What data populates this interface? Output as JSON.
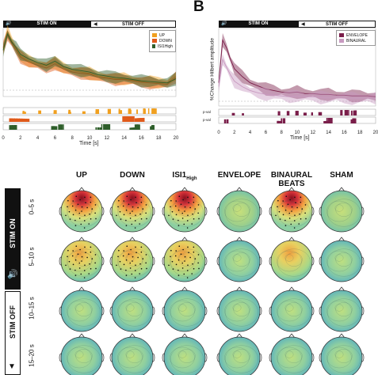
{
  "figure": {
    "panel_b_letter": "B",
    "stim_on_label": "STIM ON",
    "stim_off_label": "STIM OFF",
    "time_axis_label": "Time [s]",
    "panel_b_ylabel": "%Change Hilbert amplitude",
    "p_label_1": "p-val",
    "p_label_2": "p-val",
    "column_headers": [
      "UP",
      "DOWN",
      "ISI1",
      "ENVELOPE",
      "BINAURAL",
      "SHAM"
    ],
    "column_header_sub_isi": "High",
    "column_header_binaural_line2": "BEATS",
    "row_labels": [
      "0–5 s",
      "5–10 s",
      "10–15 s",
      "15–20 s"
    ],
    "side_stim_on": "STIM ON",
    "side_stim_off": "STIM OFF",
    "colors": {
      "up": "#f0a020",
      "down": "#e05a1a",
      "isi1": "#2e5e2a",
      "envelope": "#7a1e4a",
      "binaural": "#c89ac0"
    }
  },
  "chart_data": [
    {
      "type": "line",
      "xlabel": "Time [s]",
      "ylabel": "",
      "xlim": [
        0,
        20
      ],
      "x_ticks": [
        "0",
        "2",
        "4",
        "6",
        "8",
        "10",
        "12",
        "14",
        "16",
        "18",
        "20"
      ],
      "legend": [
        "UP",
        "DOWN",
        "ISI1High"
      ],
      "legend_placement": "top-right",
      "x": [
        0,
        0.5,
        1,
        1.5,
        2,
        3,
        4,
        5,
        6,
        7,
        8,
        9,
        10,
        11,
        12,
        13,
        14,
        15,
        16,
        17,
        18,
        19,
        20
      ],
      "series": [
        {
          "name": "UP",
          "values": [
            0.7,
            0.95,
            0.82,
            0.7,
            0.6,
            0.52,
            0.48,
            0.45,
            0.5,
            0.42,
            0.38,
            0.36,
            0.34,
            0.3,
            0.28,
            0.26,
            0.26,
            0.24,
            0.22,
            0.22,
            0.2,
            0.2,
            0.3
          ]
        },
        {
          "name": "DOWN",
          "values": [
            0.72,
            0.9,
            0.78,
            0.68,
            0.58,
            0.5,
            0.46,
            0.42,
            0.48,
            0.4,
            0.36,
            0.34,
            0.33,
            0.28,
            0.27,
            0.25,
            0.25,
            0.23,
            0.21,
            0.2,
            0.19,
            0.18,
            0.28
          ]
        },
        {
          "name": "ISI1High",
          "values": [
            0.68,
            0.92,
            0.8,
            0.72,
            0.62,
            0.55,
            0.5,
            0.46,
            0.52,
            0.44,
            0.4,
            0.38,
            0.36,
            0.32,
            0.3,
            0.28,
            0.27,
            0.25,
            0.23,
            0.22,
            0.21,
            0.2,
            0.26
          ]
        }
      ]
    },
    {
      "type": "line",
      "xlabel": "Time [s]",
      "ylabel": "%Change Hilbert amplitude",
      "xlim": [
        0,
        20
      ],
      "x_ticks": [
        "0",
        "2",
        "4",
        "6",
        "8",
        "10",
        "12",
        "14",
        "16",
        "18",
        "20"
      ],
      "legend": [
        "ENVELOPE",
        "BINAURAL"
      ],
      "legend_placement": "top-right",
      "x": [
        0,
        0.5,
        1,
        1.5,
        2,
        3,
        4,
        5,
        6,
        7,
        8,
        9,
        10,
        11,
        12,
        13,
        14,
        15,
        16,
        17,
        18,
        19,
        20
      ],
      "series": [
        {
          "name": "ENVELOPE",
          "values": [
            0.3,
            0.85,
            0.75,
            0.6,
            0.48,
            0.38,
            0.3,
            0.26,
            0.22,
            0.2,
            0.18,
            0.17,
            0.18,
            0.16,
            0.16,
            0.15,
            0.15,
            0.14,
            0.14,
            0.13,
            0.13,
            0.13,
            0.12
          ]
        },
        {
          "name": "BINAURAL",
          "values": [
            0.25,
            0.6,
            0.5,
            0.4,
            0.32,
            0.25,
            0.2,
            0.17,
            0.15,
            0.14,
            0.13,
            0.12,
            0.13,
            0.12,
            0.12,
            0.11,
            0.11,
            0.11,
            0.1,
            0.1,
            0.1,
            0.1,
            0.1
          ]
        }
      ]
    }
  ]
}
